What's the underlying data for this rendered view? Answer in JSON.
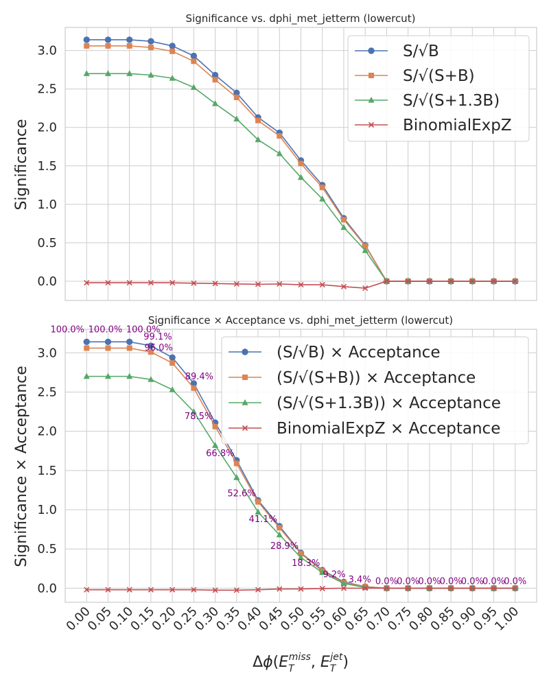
{
  "colors": {
    "s_sqrt_b": "#4c72b0",
    "s_sqrt_sb": "#dd8452",
    "s_sqrt_s13b": "#55a868",
    "binomial": "#c44e52",
    "annotation": "#800080",
    "grid": "#cccccc",
    "axes_edge": "#cccccc"
  },
  "xlabel": "Δϕ(E_T^miss, E_T^jet)",
  "chart_data": [
    {
      "type": "line",
      "title": "Significance vs. dphi_met_jetterm (lowercut)",
      "ylabel": "Significance",
      "xlim": [
        -0.05,
        1.05
      ],
      "ylim": [
        -0.25,
        3.3
      ],
      "yticks": [
        "0.0",
        "0.5",
        "1.0",
        "1.5",
        "2.0",
        "2.5",
        "3.0"
      ],
      "grid": true,
      "legend_position": "top-right",
      "x": [
        0.0,
        0.05,
        0.1,
        0.15,
        0.2,
        0.25,
        0.3,
        0.35,
        0.4,
        0.45,
        0.5,
        0.55,
        0.6,
        0.65,
        0.7,
        0.75,
        0.8,
        0.85,
        0.9,
        0.95,
        1.0
      ],
      "series": [
        {
          "name": "S/√B",
          "marker": "circle",
          "color_key": "s_sqrt_b",
          "values": [
            3.14,
            3.14,
            3.14,
            3.12,
            3.06,
            2.93,
            2.68,
            2.45,
            2.13,
            1.93,
            1.57,
            1.25,
            0.82,
            0.47,
            0.0,
            0.0,
            0.0,
            0.0,
            0.0,
            0.0,
            0.0
          ]
        },
        {
          "name": "S/√(S+B)",
          "marker": "square",
          "color_key": "s_sqrt_sb",
          "values": [
            3.06,
            3.06,
            3.06,
            3.04,
            2.99,
            2.86,
            2.62,
            2.39,
            2.09,
            1.89,
            1.53,
            1.22,
            0.8,
            0.46,
            0.0,
            0.0,
            0.0,
            0.0,
            0.0,
            0.0,
            0.0
          ]
        },
        {
          "name": "S/√(S+1.3B)",
          "marker": "triangle",
          "color_key": "s_sqrt_s13b",
          "values": [
            2.7,
            2.7,
            2.7,
            2.68,
            2.64,
            2.52,
            2.31,
            2.11,
            1.84,
            1.66,
            1.35,
            1.07,
            0.7,
            0.4,
            0.0,
            0.0,
            0.0,
            0.0,
            0.0,
            0.0,
            0.0
          ]
        },
        {
          "name": "BinomialExpZ",
          "marker": "x",
          "color_key": "binomial",
          "values": [
            -0.02,
            -0.02,
            -0.02,
            -0.02,
            -0.02,
            -0.025,
            -0.03,
            -0.035,
            -0.04,
            -0.035,
            -0.045,
            -0.045,
            -0.07,
            -0.09,
            0.0,
            0.0,
            0.0,
            0.0,
            0.0,
            0.0,
            0.0
          ]
        }
      ]
    },
    {
      "type": "line",
      "title": "Significance × Acceptance vs. dphi_met_jetterm (lowercut)",
      "ylabel": "Significance × Acceptance",
      "xlim": [
        -0.05,
        1.05
      ],
      "ylim": [
        -0.18,
        3.3
      ],
      "yticks": [
        "0.0",
        "0.5",
        "1.0",
        "1.5",
        "2.0",
        "2.5",
        "3.0"
      ],
      "xticks": [
        "0.00",
        "0.05",
        "0.10",
        "0.15",
        "0.20",
        "0.25",
        "0.30",
        "0.35",
        "0.40",
        "0.45",
        "0.50",
        "0.55",
        "0.60",
        "0.65",
        "0.70",
        "0.75",
        "0.80",
        "0.85",
        "0.90",
        "0.95",
        "1.00"
      ],
      "grid": true,
      "legend_position": "top-right",
      "x": [
        0.0,
        0.05,
        0.1,
        0.15,
        0.2,
        0.25,
        0.3,
        0.35,
        0.4,
        0.45,
        0.5,
        0.55,
        0.6,
        0.65,
        0.7,
        0.75,
        0.8,
        0.85,
        0.9,
        0.95,
        1.0
      ],
      "series": [
        {
          "name": "(S/√B) × Acceptance",
          "marker": "circle",
          "color_key": "s_sqrt_b",
          "values": [
            3.14,
            3.14,
            3.14,
            3.09,
            2.94,
            2.61,
            2.11,
            1.63,
            1.12,
            0.79,
            0.45,
            0.23,
            0.08,
            0.02,
            0.0,
            0.0,
            0.0,
            0.0,
            0.0,
            0.0,
            0.0
          ]
        },
        {
          "name": "(S/√(S+B)) × Acceptance",
          "marker": "square",
          "color_key": "s_sqrt_sb",
          "values": [
            3.06,
            3.06,
            3.06,
            3.01,
            2.87,
            2.55,
            2.06,
            1.59,
            1.1,
            0.77,
            0.44,
            0.22,
            0.07,
            0.02,
            0.0,
            0.0,
            0.0,
            0.0,
            0.0,
            0.0,
            0.0
          ]
        },
        {
          "name": "(S/√(S+1.3B)) × Acceptance",
          "marker": "triangle",
          "color_key": "s_sqrt_s13b",
          "values": [
            2.7,
            2.7,
            2.7,
            2.66,
            2.53,
            2.25,
            1.82,
            1.41,
            0.97,
            0.68,
            0.39,
            0.2,
            0.06,
            0.01,
            0.0,
            0.0,
            0.0,
            0.0,
            0.0,
            0.0,
            0.0
          ]
        },
        {
          "name": "BinomialExpZ × Acceptance",
          "marker": "x",
          "color_key": "binomial",
          "values": [
            -0.02,
            -0.02,
            -0.02,
            -0.02,
            -0.02,
            -0.02,
            -0.025,
            -0.025,
            -0.02,
            -0.01,
            -0.01,
            -0.005,
            0.0,
            0.0,
            0.0,
            0.0,
            0.0,
            0.0,
            0.0,
            0.0,
            0.0
          ]
        }
      ],
      "annotations": [
        "100.0%",
        "100.0%",
        "100.0%",
        "99.1%",
        "96.0%",
        "89.4%",
        "78.5%",
        "66.8%",
        "52.6%",
        "41.1%",
        "28.9%",
        "18.3%",
        "9.2%",
        "3.4%",
        "0.0%",
        "0.0%",
        "0.0%",
        "0.0%",
        "0.0%",
        "0.0%",
        "0.0%"
      ]
    }
  ]
}
